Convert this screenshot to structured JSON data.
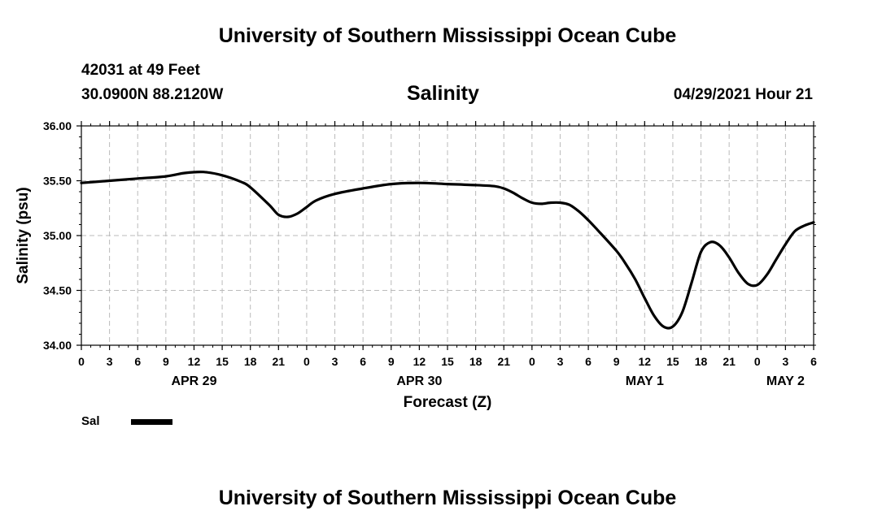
{
  "header": {
    "title_top": "University of Southern Mississippi Ocean Cube",
    "station": "42031 at 49 Feet",
    "coords": "30.0900N  88.2120W",
    "variable": "Salinity",
    "datetime": "04/29/2021 Hour 21",
    "title_bottom": "University of Southern Mississippi Ocean Cube"
  },
  "legend": {
    "label": "Sal",
    "color": "#000000"
  },
  "chart_data": {
    "type": "line",
    "title": "Salinity",
    "xlabel": "Forecast (Z)",
    "ylabel": "Salinity (psu)",
    "ylim": [
      34.0,
      36.0
    ],
    "xlim": [
      0,
      78
    ],
    "grid": true,
    "x_unit": "hours from APR 29 00Z",
    "y_ticks": [
      "34.00",
      "34.50",
      "35.00",
      "35.50",
      "36.00"
    ],
    "y_tick_values": [
      34.0,
      34.5,
      35.0,
      35.5,
      36.0
    ],
    "x_tick_labels": [
      "0",
      "3",
      "6",
      "9",
      "12",
      "15",
      "18",
      "21",
      "0",
      "3",
      "6",
      "9",
      "12",
      "15",
      "18",
      "21",
      "0",
      "3",
      "6",
      "9",
      "12",
      "15",
      "18",
      "21",
      "0",
      "3",
      "6"
    ],
    "x_tick_hours": [
      0,
      3,
      6,
      9,
      12,
      15,
      18,
      21,
      24,
      27,
      30,
      33,
      36,
      39,
      42,
      45,
      48,
      51,
      54,
      57,
      60,
      63,
      66,
      69,
      72,
      75,
      78
    ],
    "date_labels": [
      {
        "label": "APR 29",
        "hour": 12
      },
      {
        "label": "APR 30",
        "hour": 36
      },
      {
        "label": "MAY 1",
        "hour": 60
      },
      {
        "label": "MAY 2",
        "hour": 75
      }
    ],
    "series": [
      {
        "name": "Sal",
        "x": [
          0,
          3,
          6,
          9,
          11,
          13,
          15,
          17,
          18,
          20,
          21,
          22,
          23,
          24,
          25,
          27,
          30,
          33,
          36,
          39,
          42,
          44,
          45,
          46,
          47,
          48,
          49,
          50,
          51,
          52,
          53,
          54,
          55,
          57,
          58,
          59,
          60,
          61,
          62,
          63,
          64,
          65,
          66,
          67,
          68,
          69,
          70,
          71,
          72,
          73,
          74,
          75,
          76,
          77,
          78
        ],
        "values": [
          35.48,
          35.5,
          35.52,
          35.54,
          35.57,
          35.58,
          35.55,
          35.49,
          35.44,
          35.28,
          35.19,
          35.17,
          35.2,
          35.26,
          35.32,
          35.38,
          35.43,
          35.47,
          35.48,
          35.47,
          35.46,
          35.45,
          35.43,
          35.39,
          35.34,
          35.3,
          35.29,
          35.3,
          35.3,
          35.28,
          35.22,
          35.14,
          35.05,
          34.86,
          34.74,
          34.6,
          34.43,
          34.27,
          34.17,
          34.17,
          34.3,
          34.57,
          34.85,
          34.94,
          34.91,
          34.8,
          34.66,
          34.56,
          34.55,
          34.64,
          34.78,
          34.92,
          35.04,
          35.09,
          35.12
        ]
      }
    ],
    "line_color": "#000000",
    "grid_color": "#bbbbbb"
  }
}
